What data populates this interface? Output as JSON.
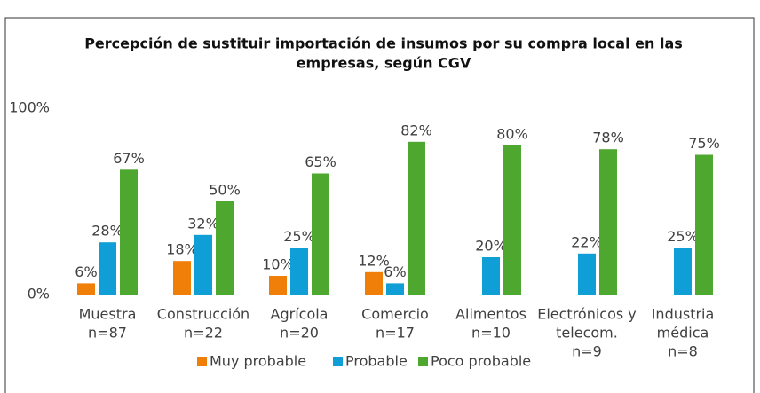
{
  "chart_data": {
    "type": "bar",
    "title": [
      "Percepción de sustituir importación de insumos por su compra local en las",
      "empresas, según CGV"
    ],
    "categories": [
      [
        "Muestra",
        "n=87"
      ],
      [
        "Construcción",
        "n=22"
      ],
      [
        "Agrícola",
        "n=20"
      ],
      [
        "Comercio",
        "n=17"
      ],
      [
        "Alimentos",
        "n=10"
      ],
      [
        "Electrónicos y",
        "telecom.",
        "n=9"
      ],
      [
        "Industria",
        "médica",
        "n=8"
      ]
    ],
    "series": [
      {
        "name": "Muy probable",
        "color": "#f07f09",
        "values": [
          6,
          18,
          10,
          12,
          null,
          null,
          null
        ],
        "value_labels": [
          "6%",
          "18%",
          "10%",
          "12%",
          null,
          null,
          null
        ]
      },
      {
        "name": "Probable",
        "color": "#0f9ed5",
        "values": [
          28,
          32,
          25,
          6,
          20,
          22,
          25
        ],
        "value_labels": [
          "28%",
          "32%",
          "25%",
          "6%",
          "20%",
          "22%",
          "25%"
        ]
      },
      {
        "name": "Poco probable",
        "color": "#4ea72e",
        "values": [
          67,
          50,
          65,
          82,
          80,
          78,
          75
        ],
        "value_labels": [
          "67%",
          "50%",
          "65%",
          "82%",
          "80%",
          "78%",
          "75%"
        ]
      }
    ],
    "ylim": [
      0,
      100
    ],
    "yticks": [
      {
        "value": 0,
        "label": "0%"
      },
      {
        "value": 100,
        "label": "100%"
      }
    ],
    "grid": false,
    "legend": "bottom"
  }
}
